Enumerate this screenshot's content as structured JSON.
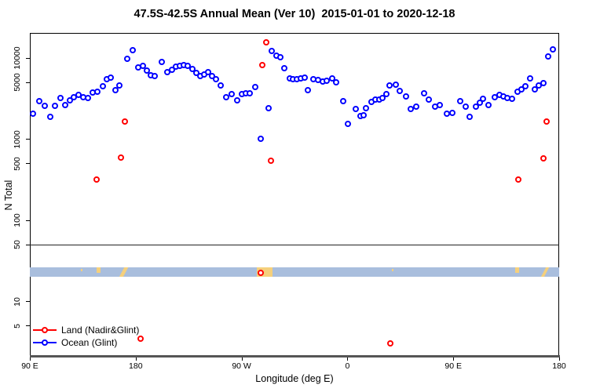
{
  "title": "47.5S-42.5S Annual Mean (Ver 10)  2015-01-01 to 2020-12-18",
  "ylabel": "N Total",
  "xlabel": "Longitude (deg E)",
  "legend": [
    {
      "label": "Land (Nadir&Glint)",
      "color": "#ff0000"
    },
    {
      "label": "Ocean (Glint)",
      "color": "#0000ff"
    }
  ],
  "colors": {
    "ocean_points": "#0000ff",
    "land_points": "#ff0000",
    "axis": "#000000",
    "reference_line": "#222222",
    "map_ocean": "#a9bedd",
    "map_land": "#f5d07c"
  },
  "chart_data": {
    "type": "scatter",
    "title": "47.5S-42.5S Annual Mean (Ver 10)  2015-01-01 to 2020-12-18",
    "xlabel": "Longitude (deg E)",
    "ylabel": "N Total",
    "y_axis": {
      "scale": "log",
      "ticks": [
        5,
        10,
        50,
        100,
        500,
        1000,
        5000,
        10000
      ],
      "range": [
        2.1,
        20500
      ]
    },
    "x_axis": {
      "note": "longitude increases eastward from 90E, wrapping 450 degrees; d = degrees east of 90E",
      "range_deg": [
        0,
        450
      ],
      "ticks": [
        {
          "d": 0,
          "label": "90 E"
        },
        {
          "d": 90,
          "label": "180"
        },
        {
          "d": 180,
          "label": "90 W"
        },
        {
          "d": 270,
          "label": "0"
        },
        {
          "d": 360,
          "label": "90 E"
        },
        {
          "d": 450,
          "label": "180"
        }
      ]
    },
    "reference_line_n": 50,
    "series": [
      {
        "name": "Ocean (Glint)",
        "color": "#0000ff",
        "points": [
          [
            2.9,
            2070
          ],
          [
            8.5,
            2940
          ],
          [
            12.7,
            2550
          ],
          [
            17.5,
            1870
          ],
          [
            22,
            2550
          ],
          [
            26.7,
            3230
          ],
          [
            30.7,
            2630
          ],
          [
            34.2,
            2960
          ],
          [
            38,
            3300
          ],
          [
            41.5,
            3530
          ],
          [
            45.5,
            3300
          ],
          [
            50,
            3230
          ],
          [
            54,
            3700
          ],
          [
            57.5,
            3860
          ],
          [
            62.5,
            4450
          ],
          [
            66,
            5430
          ],
          [
            69,
            5730
          ],
          [
            73,
            4040
          ],
          [
            76.7,
            4570
          ],
          [
            82.9,
            9690
          ],
          [
            87.5,
            12500
          ],
          [
            92.5,
            7660
          ],
          [
            96.2,
            8000
          ],
          [
            99.8,
            6940
          ],
          [
            102.9,
            6070
          ],
          [
            106.5,
            5990
          ],
          [
            112.5,
            8810
          ],
          [
            117.5,
            6640
          ],
          [
            121.3,
            7160
          ],
          [
            124.7,
            7710
          ],
          [
            128,
            8000
          ],
          [
            131.3,
            8110
          ],
          [
            134.7,
            7890
          ],
          [
            138.3,
            7290
          ],
          [
            141.8,
            6550
          ],
          [
            145.3,
            5990
          ],
          [
            148.5,
            6210
          ],
          [
            152,
            6640
          ],
          [
            155.1,
            5990
          ],
          [
            158.5,
            5430
          ],
          [
            162.5,
            4520
          ],
          [
            167.5,
            3300
          ],
          [
            172,
            3560
          ],
          [
            176.5,
            3010
          ],
          [
            180.9,
            3560
          ],
          [
            184.2,
            3670
          ],
          [
            187.3,
            3630
          ],
          [
            192,
            4360
          ],
          [
            196.5,
            1000
          ],
          [
            203.1,
            2400
          ],
          [
            206.2,
            12200
          ],
          [
            210.2,
            10700
          ],
          [
            213.1,
            10100
          ],
          [
            216.9,
            7380
          ],
          [
            221.3,
            5520
          ],
          [
            224.2,
            5430
          ],
          [
            227.3,
            5470
          ],
          [
            230.7,
            5620
          ],
          [
            234,
            5660
          ],
          [
            236.9,
            3980
          ],
          [
            241.3,
            5430
          ],
          [
            245.3,
            5380
          ],
          [
            249.5,
            5160
          ],
          [
            252.9,
            5200
          ],
          [
            257.1,
            5550
          ],
          [
            260.9,
            5000
          ],
          [
            266.9,
            2940
          ],
          [
            270.7,
            1540
          ],
          [
            277.3,
            2320
          ],
          [
            281.3,
            1910
          ],
          [
            284.2,
            1960
          ],
          [
            286.2,
            2370
          ],
          [
            290.9,
            2860
          ],
          [
            294,
            3060
          ],
          [
            297.5,
            3080
          ],
          [
            300.2,
            3230
          ],
          [
            303.5,
            3560
          ],
          [
            306.2,
            4560
          ],
          [
            311.3,
            4660
          ],
          [
            315.1,
            3950
          ],
          [
            320.2,
            3360
          ],
          [
            324.2,
            2350
          ],
          [
            328.7,
            2490
          ],
          [
            335.3,
            3670
          ],
          [
            339.8,
            3060
          ],
          [
            344.7,
            2490
          ],
          [
            349.1,
            2630
          ],
          [
            354.7,
            2070
          ],
          [
            359.5,
            2100
          ],
          [
            366.5,
            2940
          ],
          [
            370.7,
            2490
          ],
          [
            374,
            1880
          ],
          [
            379.8,
            2530
          ],
          [
            382.9,
            2800
          ],
          [
            385.8,
            3130
          ],
          [
            390.2,
            2630
          ],
          [
            395.3,
            3280
          ],
          [
            399.8,
            3530
          ],
          [
            402.9,
            3360
          ],
          [
            406.5,
            3230
          ],
          [
            410.2,
            3160
          ],
          [
            414.7,
            3810
          ],
          [
            418,
            4100
          ],
          [
            421.3,
            4450
          ],
          [
            425.3,
            5520
          ],
          [
            429.5,
            4130
          ],
          [
            433.3,
            4520
          ],
          [
            436.7,
            4930
          ],
          [
            440.7,
            10300
          ],
          [
            445.3,
            12700
          ]
        ]
      },
      {
        "name": "Land (Nadir&Glint)",
        "color": "#ff0000",
        "points": [
          [
            57.3,
            317
          ],
          [
            78,
            595
          ],
          [
            81.3,
            1630
          ],
          [
            94.7,
            3.4
          ],
          [
            196.7,
            22.5
          ],
          [
            198,
            8110
          ],
          [
            201.3,
            15500
          ],
          [
            205.3,
            536
          ],
          [
            306.7,
            3.0
          ],
          [
            415.8,
            319
          ],
          [
            436.9,
            578
          ],
          [
            439.5,
            1630
          ]
        ]
      }
    ],
    "map_strip": {
      "description": "47.5S-42.5S latitude band map: ocean with land patches (Tasmania, New Zealand, South America)",
      "ocean_color": "#a9bedd",
      "land_color": "#f5d07c",
      "n_range": [
        20,
        26.3
      ],
      "land_patches": [
        {
          "d0": 43.5,
          "d1": 45,
          "shape": "speck"
        },
        {
          "d0": 57,
          "d1": 60,
          "shape": "top"
        },
        {
          "d0": 76,
          "d1": 83.5,
          "shape": "diag"
        },
        {
          "d0": 193,
          "d1": 206.5,
          "shape": "full"
        },
        {
          "d0": 307.5,
          "d1": 308.5,
          "shape": "speck"
        },
        {
          "d0": 412.5,
          "d1": 416,
          "shape": "top"
        },
        {
          "d0": 434.5,
          "d1": 441,
          "shape": "diag"
        }
      ]
    }
  }
}
